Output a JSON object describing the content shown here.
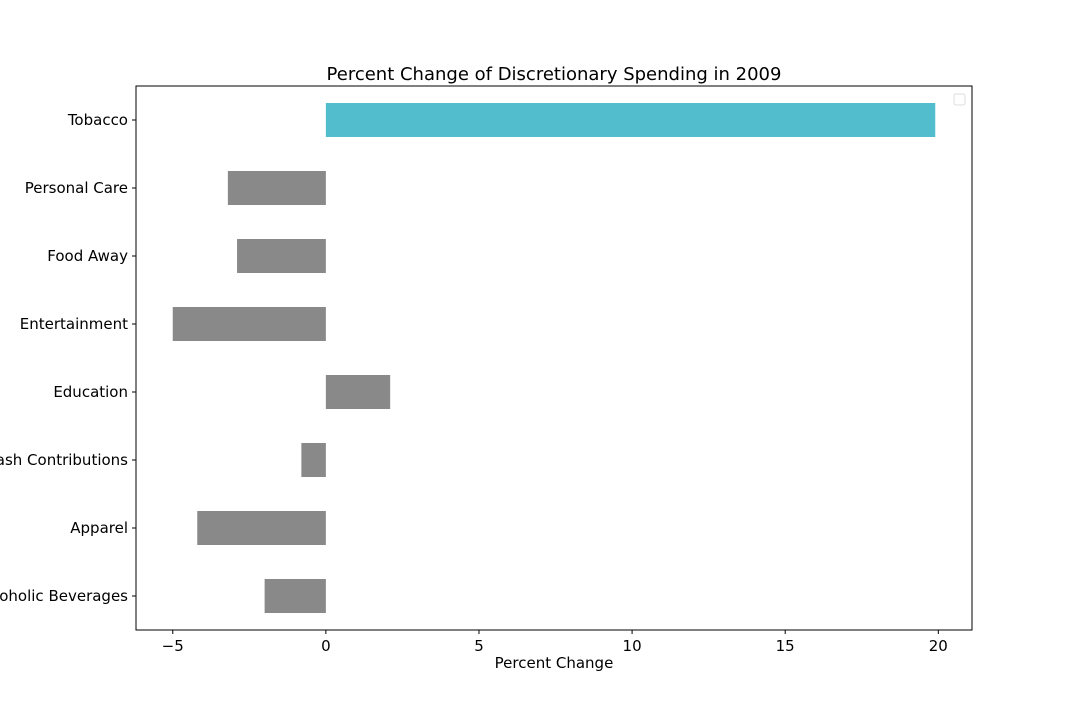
{
  "chart_data": {
    "type": "bar",
    "orientation": "horizontal",
    "title": "Percent Change of Discretionary Spending in 2009",
    "xlabel": "Percent Change",
    "ylabel": "",
    "categories": [
      "Tobacco",
      "Personal Care",
      "Food Away",
      "Entertainment",
      "Education",
      "Cash Contributions",
      "Apparel",
      "Alcoholic Beverages"
    ],
    "values": [
      19.9,
      -3.2,
      -2.9,
      -5.0,
      2.1,
      -0.8,
      -4.2,
      -2.0
    ],
    "xlim": [
      -6.2,
      21.1
    ],
    "xticks": [
      -5,
      0,
      5,
      10,
      15,
      20
    ],
    "xtick_labels": [
      "−5",
      "0",
      "5",
      "10",
      "15",
      "20"
    ],
    "grid": false,
    "legend": "top-right, empty",
    "colors": {
      "positive_highlight": "#52bdcc",
      "default_bar": "#898989"
    },
    "bar_colors": [
      "#52bdcc",
      "#898989",
      "#898989",
      "#898989",
      "#898989",
      "#898989",
      "#898989",
      "#898989"
    ]
  }
}
